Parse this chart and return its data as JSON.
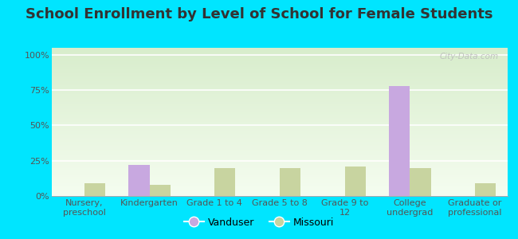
{
  "title": "School Enrollment by Level of School for Female Students",
  "categories": [
    "Nursery,\npreschool",
    "Kindergarten",
    "Grade 1 to 4",
    "Grade 5 to 8",
    "Grade 9 to\n12",
    "College\nundergrad",
    "Graduate or\nprofessional"
  ],
  "vanduser": [
    0,
    22,
    0,
    0,
    0,
    78,
    0
  ],
  "missouri": [
    9,
    8,
    20,
    20,
    21,
    20,
    9
  ],
  "vanduser_color": "#c8a8e0",
  "missouri_color": "#c8d4a0",
  "background_outer": "#00e5ff",
  "background_plot": "#e8f5e2",
  "yticks": [
    0,
    25,
    50,
    75,
    100
  ],
  "ytick_labels": [
    "0%",
    "25%",
    "50%",
    "75%",
    "100%"
  ],
  "ylim": [
    0,
    105
  ],
  "bar_width": 0.32,
  "title_fontsize": 13,
  "tick_fontsize": 8,
  "legend_fontsize": 9,
  "watermark": "City-Data.com"
}
